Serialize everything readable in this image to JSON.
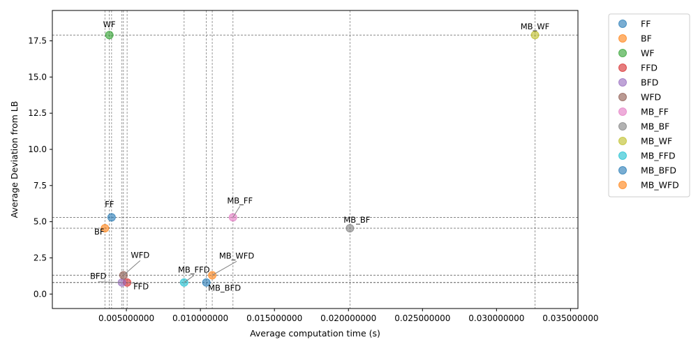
{
  "chart_data": {
    "type": "scatter",
    "xlabel": "Average computation time (s)",
    "ylabel": "Average Deviation from LB",
    "xlim": [
      0.0,
      0.0355
    ],
    "ylim": [
      -1.0,
      19.6
    ],
    "x_ticks": [
      0.005,
      0.01,
      0.015,
      0.02,
      0.025,
      0.03,
      0.035
    ],
    "x_tick_labels": [
      "0.005000000",
      "0.010000000",
      "0.015000000",
      "0.020000000",
      "0.025000000",
      "0.030000000",
      "0.035000000"
    ],
    "y_ticks": [
      0.0,
      2.5,
      5.0,
      7.5,
      10.0,
      12.5,
      15.0,
      17.5
    ],
    "y_tick_labels": [
      "0.0",
      "2.5",
      "5.0",
      "7.5",
      "10.0",
      "12.5",
      "15.0",
      "17.5"
    ],
    "grid": "dashed reference lines through each point",
    "legend_position": "outside right",
    "points": [
      {
        "name": "FF",
        "x": 0.004,
        "y": 5.3,
        "color": "#1f77b4"
      },
      {
        "name": "BF",
        "x": 0.00355,
        "y": 4.55,
        "color": "#ff7f0e"
      },
      {
        "name": "WF",
        "x": 0.00385,
        "y": 17.9,
        "color": "#2ca02c"
      },
      {
        "name": "FFD",
        "x": 0.00505,
        "y": 0.8,
        "color": "#d62728"
      },
      {
        "name": "BFD",
        "x": 0.0047,
        "y": 0.8,
        "color": "#9467bd"
      },
      {
        "name": "WFD",
        "x": 0.0048,
        "y": 1.3,
        "color": "#8c564b"
      },
      {
        "name": "MB_FF",
        "x": 0.0122,
        "y": 5.3,
        "color": "#e377c2"
      },
      {
        "name": "MB_BF",
        "x": 0.0201,
        "y": 4.55,
        "color": "#7f7f7f"
      },
      {
        "name": "MB_WF",
        "x": 0.0326,
        "y": 17.9,
        "color": "#bcbd22"
      },
      {
        "name": "MB_FFD",
        "x": 0.0089,
        "y": 0.8,
        "color": "#17becf"
      },
      {
        "name": "MB_BFD",
        "x": 0.0104,
        "y": 0.8,
        "color": "#1f77b4"
      },
      {
        "name": "MB_WFD",
        "x": 0.0108,
        "y": 1.3,
        "color": "#ff7f0e"
      }
    ],
    "legend": [
      "FF",
      "BF",
      "WF",
      "FFD",
      "BFD",
      "WFD",
      "MB_FF",
      "MB_BF",
      "MB_WF",
      "MB_FFD",
      "MB_BFD",
      "MB_WFD"
    ]
  }
}
